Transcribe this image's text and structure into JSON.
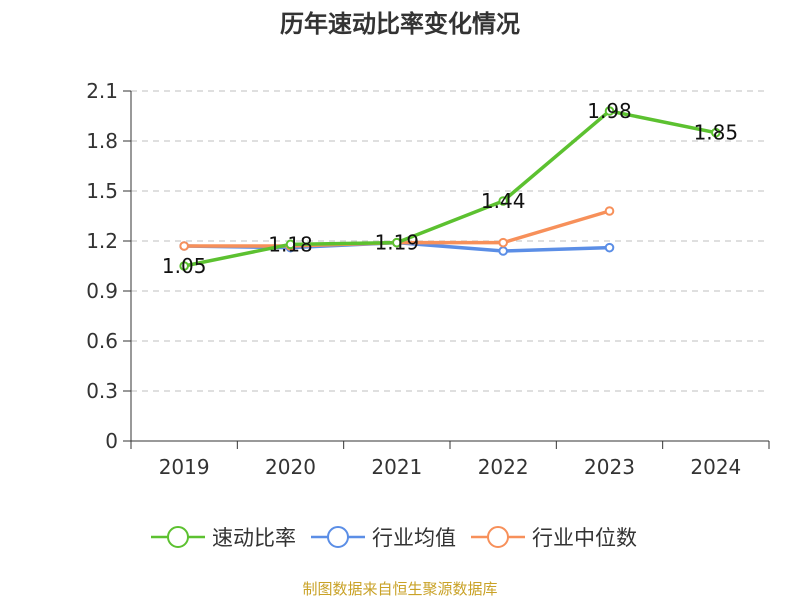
{
  "chart_data": {
    "type": "line",
    "title": "历年速动比率变化情况",
    "categories": [
      "2019",
      "2020",
      "2021",
      "2022",
      "2023",
      "2024"
    ],
    "ylim": [
      0,
      2.1
    ],
    "yticks": [
      "0",
      "0.3",
      "0.6",
      "0.9",
      "1.2",
      "1.5",
      "1.8",
      "2.1"
    ],
    "grid": true,
    "legend_position": "bottom",
    "series": [
      {
        "name": "速动比率",
        "color": "#5cc130",
        "values": [
          1.05,
          1.18,
          1.19,
          1.44,
          1.98,
          1.85
        ],
        "labels": [
          "1.05",
          "1.18",
          "1.19",
          "1.44",
          "1.98",
          "1.85"
        ]
      },
      {
        "name": "行业均值",
        "color": "#5b8ee6",
        "values": [
          1.17,
          1.16,
          1.19,
          1.14,
          1.16,
          null
        ]
      },
      {
        "name": "行业中位数",
        "color": "#f7905a",
        "values": [
          1.17,
          1.17,
          1.19,
          1.19,
          1.38,
          null
        ]
      }
    ]
  },
  "source": "制图数据来自恒生聚源数据库"
}
